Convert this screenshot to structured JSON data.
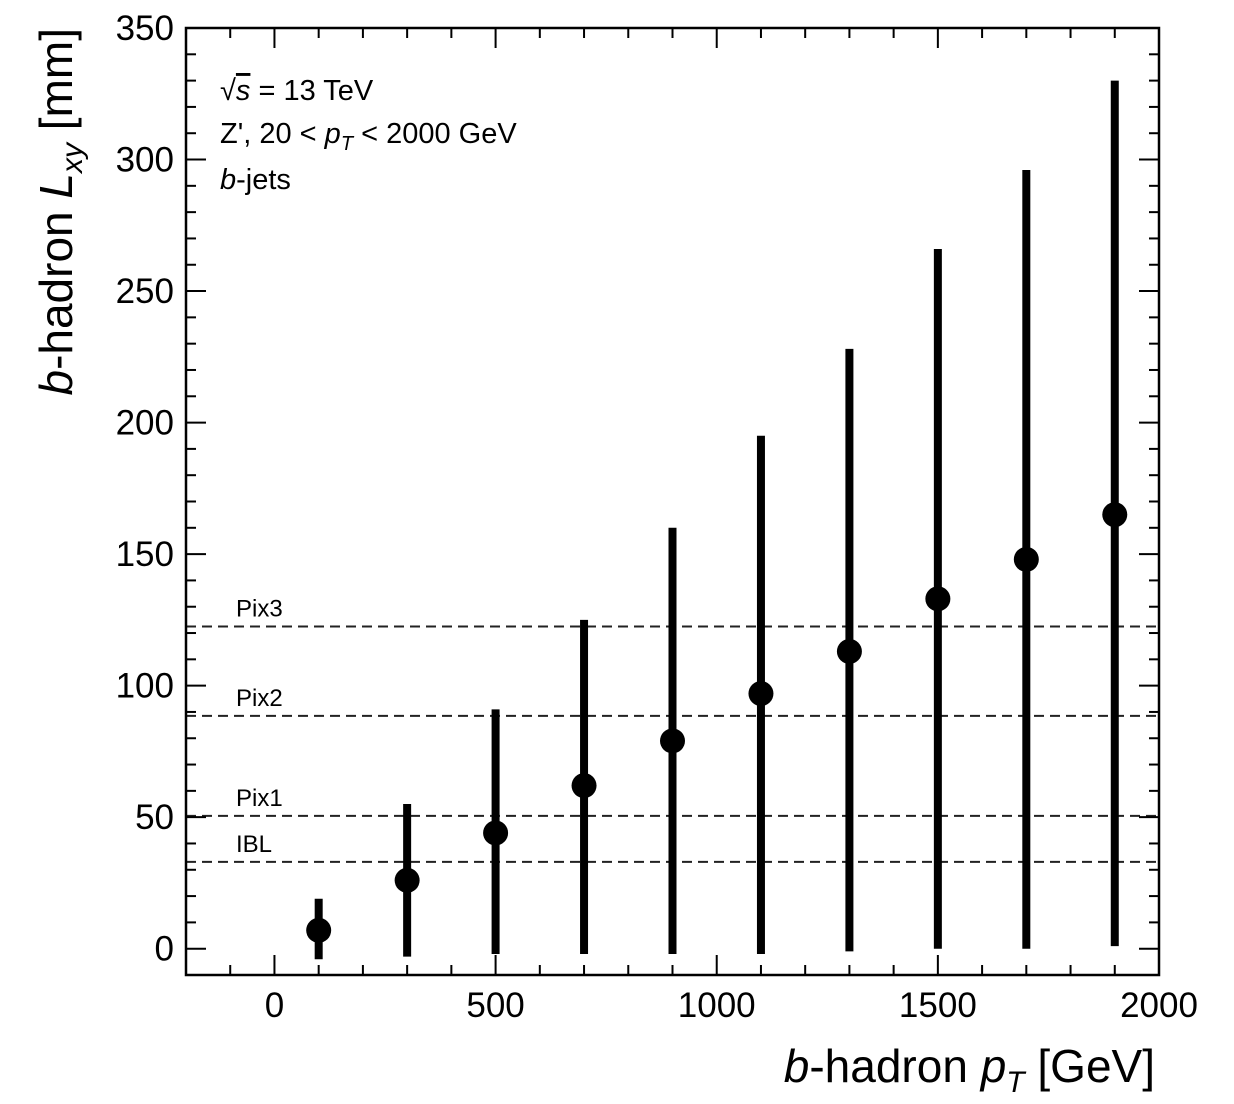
{
  "chart_data": {
    "type": "scatter",
    "xlabel_parts": [
      "b",
      "-hadron ",
      "p",
      "T",
      " [GeV]"
    ],
    "ylabel_parts": [
      "b",
      "-hadron ",
      "L",
      "xy",
      " [mm]"
    ],
    "xlim": [
      -200,
      2000
    ],
    "ylim": [
      -10,
      350
    ],
    "x_ticks": [
      0,
      500,
      1000,
      1500,
      2000
    ],
    "y_ticks": [
      0,
      50,
      100,
      150,
      200,
      250,
      300,
      350
    ],
    "x_minor_step": 100,
    "y_minor_step": 10,
    "annotations": {
      "line1": {
        "prefix": "√",
        "s": "s",
        "rest": " = 13 TeV"
      },
      "line2": {
        "a": "Z', 20 < ",
        "p": "p",
        "sub": "T",
        "b": " < 2000 GeV"
      },
      "line3": {
        "b": "b",
        "rest": "-jets"
      }
    },
    "layers": [
      {
        "name": "IBL",
        "y": 33
      },
      {
        "name": "Pix1",
        "y": 50.5
      },
      {
        "name": "Pix2",
        "y": 88.5
      },
      {
        "name": "Pix3",
        "y": 122.5
      }
    ],
    "series": [
      {
        "x": [
          100,
          300,
          500,
          700,
          900,
          1100,
          1300,
          1500,
          1700,
          1900
        ],
        "y": [
          7,
          26,
          44,
          62,
          79,
          97,
          113,
          133,
          148,
          165
        ],
        "y_low": [
          -4,
          -3,
          -2,
          -2,
          -2,
          -2,
          -1,
          0,
          0,
          1
        ],
        "y_high": [
          19,
          55,
          91,
          125,
          160,
          195,
          228,
          266,
          296,
          330
        ]
      }
    ],
    "colors": {
      "marker": "#000000",
      "layer_line": "#222222"
    },
    "grid": false
  }
}
